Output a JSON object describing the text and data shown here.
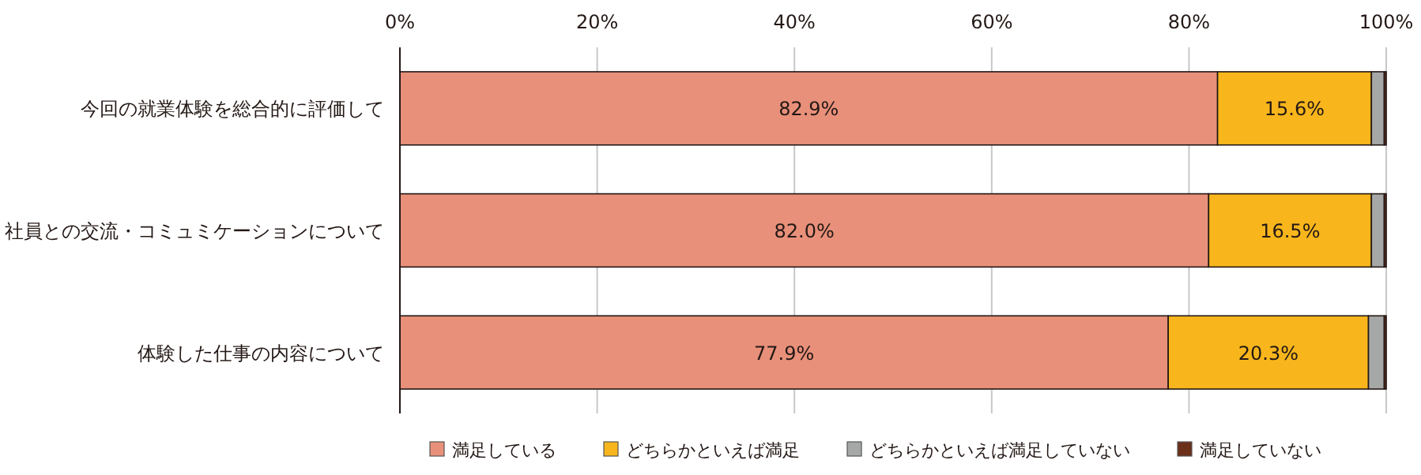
{
  "chart_data": {
    "type": "bar",
    "orientation": "horizontal",
    "stacked": true,
    "categories": [
      "今回の就業体験を総合的に評価して",
      "社員との交流・コミュミケーションについて",
      "体験した仕事の内容について"
    ],
    "series": [
      {
        "name": "満足している",
        "color": "#e8907a",
        "values": [
          82.9,
          82.0,
          77.9
        ],
        "value_labels": [
          "82.9%",
          "82.0%",
          "77.9%"
        ]
      },
      {
        "name": "どちらかといえば満足",
        "color": "#f8b61c",
        "values": [
          15.6,
          16.5,
          20.3
        ],
        "value_labels": [
          "15.6%",
          "16.5%",
          "20.3%"
        ]
      },
      {
        "name": "どちらかといえば満足していない",
        "color": "#a6a8a7",
        "values": [
          1.3,
          1.3,
          1.6
        ]
      },
      {
        "name": "満足していない",
        "color": "#6b2f1a",
        "values": [
          0.2,
          0.2,
          0.2
        ]
      }
    ],
    "xlim": [
      0,
      100
    ],
    "xticks": [
      {
        "value": 0,
        "label": "0%"
      },
      {
        "value": 20,
        "label": "20%"
      },
      {
        "value": 40,
        "label": "40%"
      },
      {
        "value": 60,
        "label": "60%"
      },
      {
        "value": 80,
        "label": "80%"
      },
      {
        "value": 100,
        "label": "100%"
      }
    ],
    "grid": "x",
    "legend": "bottom"
  }
}
